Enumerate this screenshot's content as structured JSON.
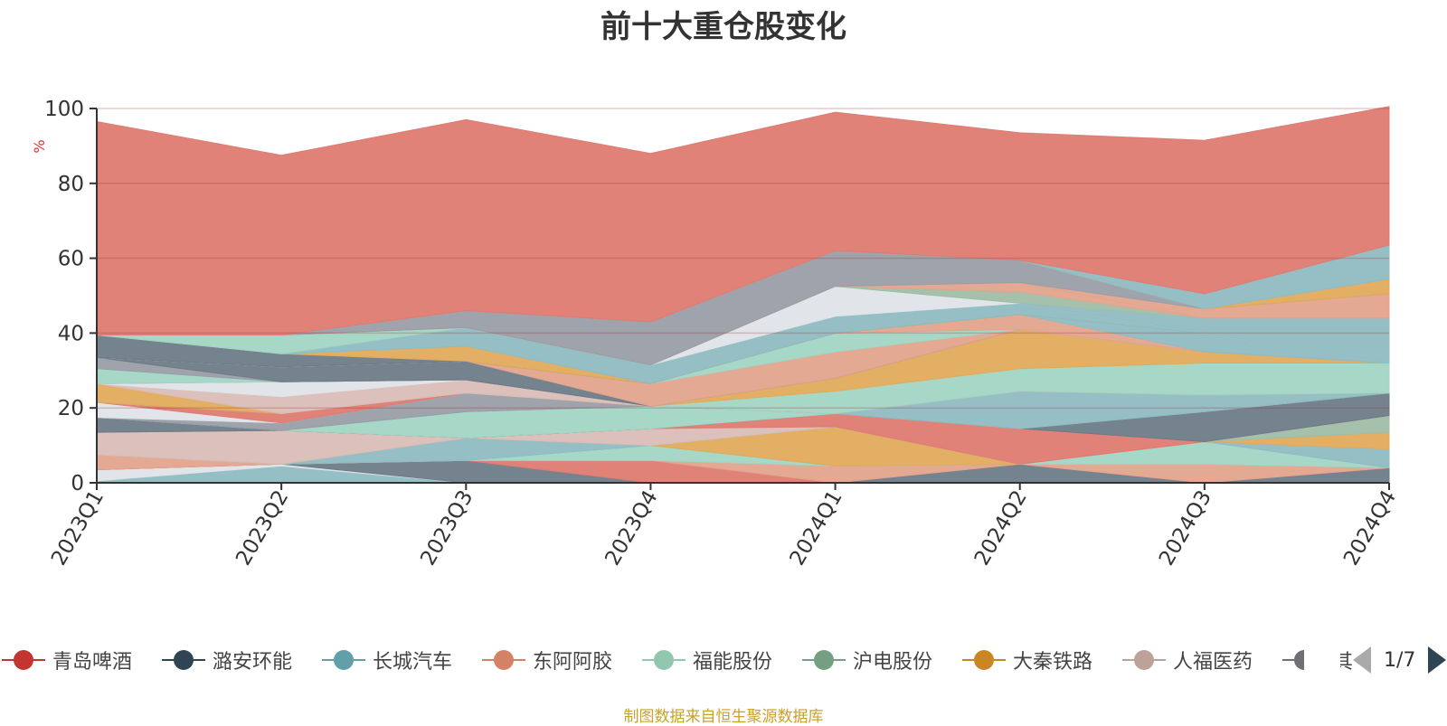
{
  "title": "前十大重仓股变化",
  "source_note": "制图数据来自恒生聚源数据库",
  "legend_page": "1/7",
  "chart_data": {
    "type": "area",
    "stacked": true,
    "title": "前十大重仓股变化",
    "ylabel": "%",
    "ylim": [
      0,
      100
    ],
    "yticks": [
      0,
      20,
      40,
      60,
      80,
      100
    ],
    "grid": true,
    "legend_position": "bottom",
    "categories": [
      "2023Q1",
      "2023Q2",
      "2023Q3",
      "2023Q4",
      "2024Q1",
      "2024Q2",
      "2024Q3",
      "2024Q4"
    ],
    "series": [
      {
        "name": "",
        "color": "#8fbcc2",
        "values": [
          0.5,
          4.5,
          0,
          0,
          0,
          0,
          0,
          0
        ]
      },
      {
        "name": "",
        "color": "#dfe3e8",
        "values": [
          3,
          0.5,
          0,
          0,
          0,
          0,
          0,
          0
        ]
      },
      {
        "name": "",
        "color": "#6e7c88",
        "values": [
          0,
          0,
          6,
          0,
          0,
          5,
          0,
          4
        ]
      },
      {
        "name": "",
        "color": "#df7b72",
        "values": [
          0,
          0,
          0,
          6,
          0,
          0,
          0,
          0
        ]
      },
      {
        "name": "",
        "color": "#e3a48d",
        "values": [
          4,
          0,
          0,
          0,
          4.5,
          0,
          5,
          0
        ]
      },
      {
        "name": "",
        "color": "#a2d5c4",
        "values": [
          0,
          0,
          0,
          4,
          0,
          0,
          6,
          0
        ]
      },
      {
        "name": "",
        "color": "#8fbcc2",
        "values": [
          0,
          0,
          6,
          0,
          0,
          0,
          0,
          5
        ]
      },
      {
        "name": "",
        "color": "#e0ab5c",
        "values": [
          0,
          0,
          0,
          0,
          10.5,
          0,
          0,
          4.5
        ]
      },
      {
        "name": "",
        "color": "#a0bea8",
        "values": [
          0,
          0,
          0,
          0,
          0,
          0,
          0,
          4.5
        ]
      },
      {
        "name": "",
        "color": "#d9bdb8",
        "values": [
          6,
          9,
          0,
          4.5,
          0,
          0,
          0,
          0
        ]
      },
      {
        "name": "",
        "color": "#df7b72",
        "values": [
          0,
          0,
          0,
          0,
          3.5,
          9.5,
          0,
          0
        ]
      },
      {
        "name": "",
        "color": "#6e7c88",
        "values": [
          4,
          0,
          0,
          0,
          0,
          0,
          8,
          6
        ]
      },
      {
        "name": "",
        "color": "#a2d5c4",
        "values": [
          0,
          0,
          7,
          6,
          0,
          0,
          0,
          0
        ]
      },
      {
        "name": "",
        "color": "#8fbcc2",
        "values": [
          0,
          0,
          0,
          0,
          0,
          10,
          4.5,
          0
        ]
      },
      {
        "name": "",
        "color": "#9a9ea6",
        "values": [
          0,
          2,
          5,
          0,
          0,
          0,
          0,
          0
        ]
      },
      {
        "name": "",
        "color": "#dfe3e8",
        "values": [
          4,
          0,
          0,
          0,
          0,
          0,
          0,
          0
        ]
      },
      {
        "name": "",
        "color": "#df7b72",
        "values": [
          0,
          2.5,
          0,
          0,
          0,
          0,
          0,
          0
        ]
      },
      {
        "name": "",
        "color": "#a2d5c4",
        "values": [
          0,
          0,
          0,
          0,
          6,
          6,
          8.5,
          8
        ]
      },
      {
        "name": "",
        "color": "#e0ab5c",
        "values": [
          5,
          0,
          0,
          0,
          3.5,
          10.5,
          3,
          0
        ]
      },
      {
        "name": "",
        "color": "#d9bdb8",
        "values": [
          0,
          4.5,
          3.5,
          0,
          0,
          0,
          0,
          0
        ]
      },
      {
        "name": "",
        "color": "#e3a48d",
        "values": [
          0,
          0,
          0,
          0,
          0,
          0,
          0,
          0
        ]
      },
      {
        "name": "",
        "color": "#dfe3e8",
        "values": [
          0,
          4,
          0,
          0,
          0,
          0,
          0,
          0
        ]
      },
      {
        "name": "",
        "color": "#df7b72",
        "values": [
          0,
          0,
          0,
          0,
          0,
          0,
          0,
          0
        ]
      },
      {
        "name": "",
        "color": "#a2d5c4",
        "values": [
          4,
          0,
          0,
          0,
          0,
          0,
          0,
          0
        ]
      },
      {
        "name": "",
        "color": "#9a9ea6",
        "values": [
          3,
          0,
          0,
          0,
          0,
          0,
          0,
          0
        ]
      },
      {
        "name": "",
        "color": "#6e7c88",
        "values": [
          0,
          4,
          5,
          0,
          0,
          0,
          0,
          0
        ]
      },
      {
        "name": "",
        "color": "#e3a48d",
        "values": [
          0,
          0,
          0,
          6,
          7,
          0,
          0,
          0
        ]
      },
      {
        "name": "",
        "color": "#a2d5c4",
        "values": [
          0,
          0,
          0,
          0,
          5,
          0,
          0,
          0
        ]
      },
      {
        "name": "",
        "color": "#e3a48d",
        "values": [
          0,
          0,
          0,
          0,
          0,
          4,
          0,
          0
        ]
      },
      {
        "name": "",
        "color": "#8fbcc2",
        "values": [
          0,
          0,
          0,
          0,
          0,
          0,
          5,
          0
        ]
      },
      {
        "name": "",
        "color": "#6e7c88",
        "values": [
          6,
          3.5,
          0,
          0,
          0,
          0,
          0,
          0
        ]
      },
      {
        "name": "",
        "color": "#e0ab5c",
        "values": [
          0,
          0,
          4,
          0,
          0,
          0,
          0,
          0
        ]
      },
      {
        "name": "",
        "color": "#8fbcc2",
        "values": [
          0,
          0,
          5,
          5,
          4.5,
          3,
          0,
          0
        ]
      },
      {
        "name": "",
        "color": "#a2d5c4",
        "values": [
          0,
          5,
          0,
          0,
          0,
          0,
          0,
          0
        ]
      },
      {
        "name": "",
        "color": "#dfe3e8",
        "values": [
          0,
          0,
          0,
          0,
          8,
          0,
          0,
          0
        ]
      },
      {
        "name": "",
        "color": "#8fbcc2",
        "values": [
          0,
          0,
          0,
          0,
          0,
          0,
          4,
          12
        ]
      },
      {
        "name": "",
        "color": "#a0bea8",
        "values": [
          0,
          0,
          0,
          0,
          0,
          3,
          0,
          0
        ]
      },
      {
        "name": "",
        "color": "#e3a48d",
        "values": [
          0,
          0,
          0,
          0,
          0,
          2.5,
          0,
          0
        ]
      },
      {
        "name": "",
        "color": "#e3a48d",
        "values": [
          0,
          0,
          0,
          0,
          0,
          0,
          2.5,
          6.5
        ]
      },
      {
        "name": "",
        "color": "#9a9ea6",
        "values": [
          0,
          0,
          4.5,
          11.5,
          9.5,
          6,
          0,
          0
        ]
      },
      {
        "name": "",
        "color": "#e0ab5c",
        "values": [
          0,
          0,
          0,
          0,
          0,
          0,
          0,
          4
        ]
      },
      {
        "name": "",
        "color": "#8fbcc2",
        "values": [
          0,
          0,
          0,
          0,
          0,
          0,
          4,
          9
        ]
      },
      {
        "name": "",
        "color": "#df7b72",
        "values": [
          57,
          48,
          51,
          45,
          37,
          34,
          41,
          37
        ]
      }
    ],
    "legend": [
      {
        "name": "青岛啤酒",
        "color": "#c23531"
      },
      {
        "name": "潞安环能",
        "color": "#2f4554"
      },
      {
        "name": "长城汽车",
        "color": "#61a0a8"
      },
      {
        "name": "东阿阿胶",
        "color": "#d48265"
      },
      {
        "name": "福能股份",
        "color": "#91c7ae"
      },
      {
        "name": "沪电股份",
        "color": "#749f83"
      },
      {
        "name": "大秦铁路",
        "color": "#ca8622"
      },
      {
        "name": "人福医药",
        "color": "#bda29a"
      },
      {
        "name": "其",
        "color": "#6e7074"
      }
    ]
  }
}
